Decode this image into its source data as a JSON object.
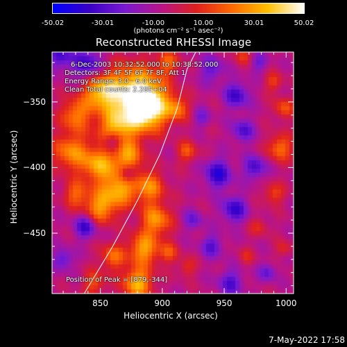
{
  "colorbar": {
    "tick_labels": [
      "-50.02",
      "-30.01",
      "-10.00",
      "10.00",
      "30.01",
      "50.02"
    ],
    "unit_label": "(photons cm⁻² s⁻¹ asec⁻²)",
    "range": [
      -50.02,
      50.02
    ],
    "colors": [
      "#0000ff",
      "#3a00c8",
      "#7a1ad2",
      "#b8148a",
      "#e0201e",
      "#ff6a00",
      "#ffc000",
      "#ffffff"
    ]
  },
  "info": {
    "line1": "6-Dec-2003 10:32:52.000 to 10:38:52.000",
    "line2": "Detectors: 3F 4F 5F 6F 7F 8F, Att 1",
    "line3": "Energy Range: 3.0 - 6.0 keV",
    "line4": "Clean      Total counts: 2.28E+04",
    "peak": "Position of Peak = [879,-344]"
  },
  "timestamp": "7-May-2022 17:58",
  "chart_data": {
    "type": "heatmap",
    "title": "Reconstructed RHESSI Image",
    "xlabel": "Heliocentric X (arcsec)",
    "ylabel": "Heliocentric Y (arcsec)",
    "xlim": [
      811,
      1006
    ],
    "ylim": [
      -496,
      -312
    ],
    "xticks": [
      850,
      900,
      950,
      1000
    ],
    "yticks": [
      -350,
      -400,
      -450
    ],
    "x_tick_labels": [
      "850",
      "900",
      "950",
      "1000"
    ],
    "y_tick_labels": [
      "−350",
      "−400",
      "−450"
    ],
    "limb_curve": [
      [
        837,
        -496
      ],
      [
        860,
        -460
      ],
      [
        880,
        -425
      ],
      [
        898,
        -390
      ],
      [
        912,
        -355
      ],
      [
        920,
        -325
      ],
      [
        927,
        -312
      ]
    ],
    "peak_position": [
      879,
      -344
    ],
    "blobs": [
      {
        "x": 878,
        "y": -345,
        "r": 22,
        "v": 52
      },
      {
        "x": 850,
        "y": -342,
        "r": 14,
        "v": 40
      },
      {
        "x": 888,
        "y": -355,
        "r": 16,
        "v": 45
      },
      {
        "x": 862,
        "y": -372,
        "r": 14,
        "v": 38
      },
      {
        "x": 830,
        "y": -360,
        "r": 12,
        "v": 30
      },
      {
        "x": 826,
        "y": -388,
        "r": 14,
        "v": 32
      },
      {
        "x": 848,
        "y": -398,
        "r": 13,
        "v": 36
      },
      {
        "x": 872,
        "y": -392,
        "r": 12,
        "v": 32
      },
      {
        "x": 866,
        "y": -415,
        "r": 14,
        "v": 38
      },
      {
        "x": 890,
        "y": -415,
        "r": 12,
        "v": 30
      },
      {
        "x": 850,
        "y": -430,
        "r": 13,
        "v": 34
      },
      {
        "x": 830,
        "y": -420,
        "r": 10,
        "v": 24
      },
      {
        "x": 895,
        "y": -440,
        "r": 12,
        "v": 34
      },
      {
        "x": 885,
        "y": -462,
        "r": 12,
        "v": 36
      },
      {
        "x": 860,
        "y": -468,
        "r": 10,
        "v": 26
      },
      {
        "x": 880,
        "y": -488,
        "r": 12,
        "v": 40
      },
      {
        "x": 845,
        "y": -488,
        "r": 9,
        "v": 22
      },
      {
        "x": 912,
        "y": -355,
        "r": 9,
        "v": 26
      },
      {
        "x": 920,
        "y": -388,
        "r": 8,
        "v": 22
      },
      {
        "x": 905,
        "y": -320,
        "r": 9,
        "v": 22
      },
      {
        "x": 905,
        "y": -465,
        "r": 8,
        "v": 20
      },
      {
        "x": 920,
        "y": -476,
        "r": 7,
        "v": 16
      },
      {
        "x": 995,
        "y": -385,
        "r": 10,
        "v": 28
      },
      {
        "x": 998,
        "y": -355,
        "r": 8,
        "v": 22
      },
      {
        "x": 990,
        "y": -335,
        "r": 7,
        "v": 18
      },
      {
        "x": 965,
        "y": -315,
        "r": 7,
        "v": 16
      },
      {
        "x": 990,
        "y": -420,
        "r": 8,
        "v": 20
      },
      {
        "x": 978,
        "y": -445,
        "r": 7,
        "v": 14
      },
      {
        "x": 998,
        "y": -462,
        "r": 6,
        "v": 14
      },
      {
        "x": 968,
        "y": -468,
        "r": 6,
        "v": 12
      },
      {
        "x": 840,
        "y": -322,
        "r": 12,
        "v": -30
      },
      {
        "x": 818,
        "y": -315,
        "r": 10,
        "v": -26
      },
      {
        "x": 860,
        "y": -380,
        "r": 8,
        "v": -32
      },
      {
        "x": 872,
        "y": -405,
        "r": 7,
        "v": -28
      },
      {
        "x": 838,
        "y": -445,
        "r": 9,
        "v": -30
      },
      {
        "x": 820,
        "y": -470,
        "r": 8,
        "v": -22
      },
      {
        "x": 940,
        "y": -325,
        "r": 10,
        "v": -20
      },
      {
        "x": 960,
        "y": -345,
        "r": 10,
        "v": -28
      },
      {
        "x": 965,
        "y": -372,
        "r": 9,
        "v": -24
      },
      {
        "x": 945,
        "y": -405,
        "r": 11,
        "v": -32
      },
      {
        "x": 975,
        "y": -400,
        "r": 9,
        "v": -26
      },
      {
        "x": 958,
        "y": -432,
        "r": 10,
        "v": -30
      },
      {
        "x": 940,
        "y": -460,
        "r": 9,
        "v": -22
      },
      {
        "x": 955,
        "y": -488,
        "r": 10,
        "v": -24
      },
      {
        "x": 985,
        "y": -480,
        "r": 7,
        "v": -20
      },
      {
        "x": 925,
        "y": -440,
        "r": 8,
        "v": -18
      },
      {
        "x": 932,
        "y": -362,
        "r": 7,
        "v": -16
      },
      {
        "x": 978,
        "y": -320,
        "r": 7,
        "v": -18
      }
    ]
  }
}
